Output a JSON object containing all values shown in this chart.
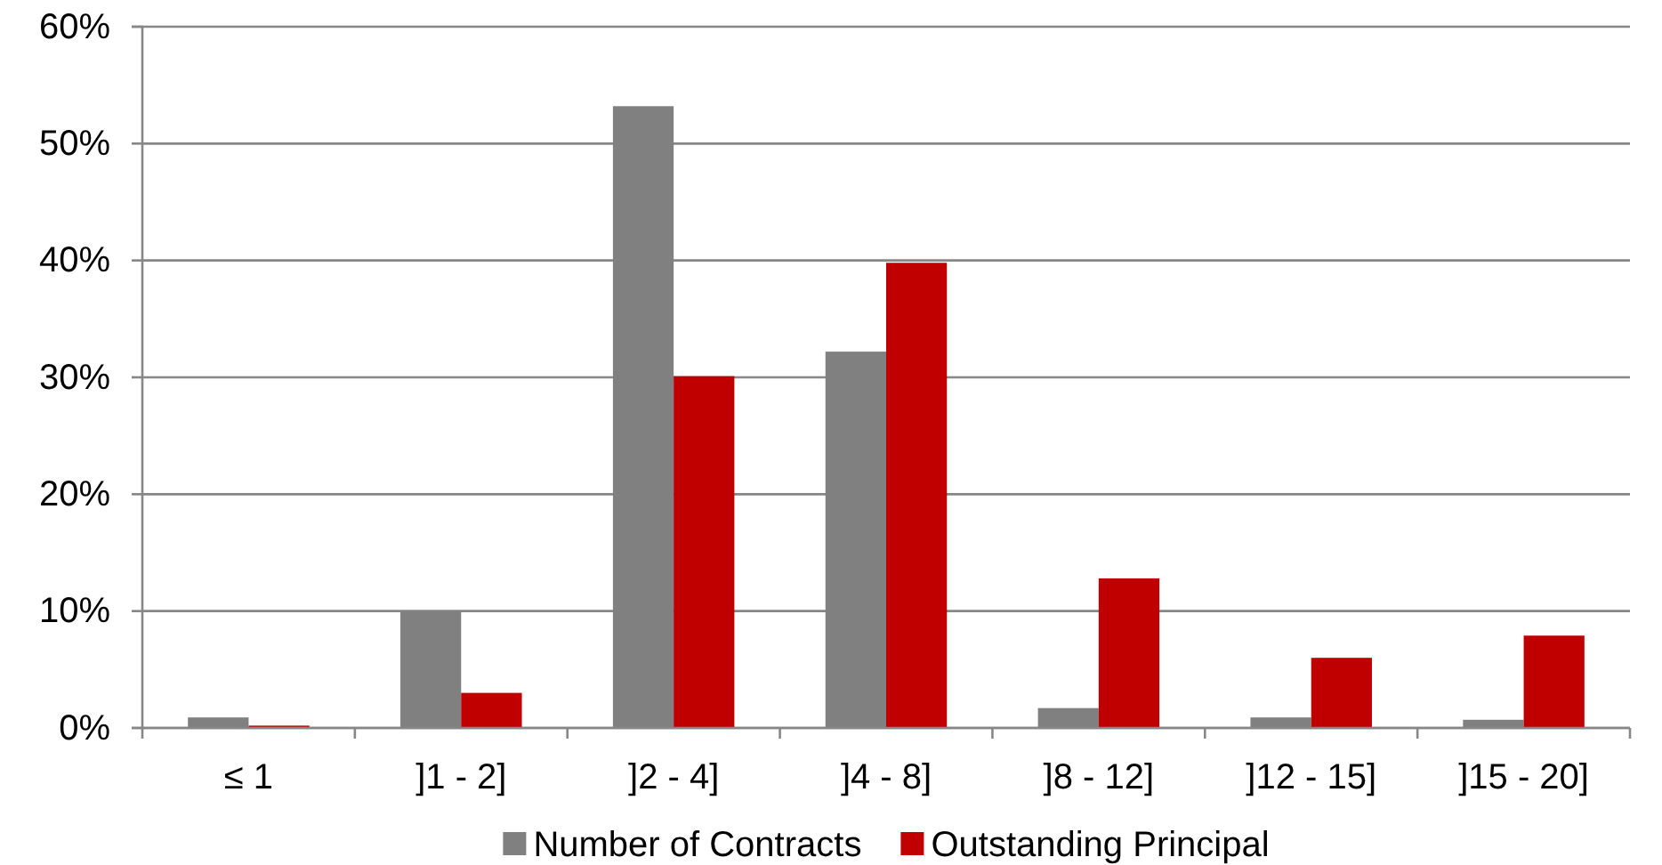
{
  "chart_data": {
    "type": "bar",
    "categories": [
      "≤ 1",
      "]1 - 2]",
      "]2 - 4]",
      "]4 - 8]",
      "]8 - 12]",
      "]12 - 15]",
      "]15 - 20]"
    ],
    "series": [
      {
        "name": "Number of Contracts",
        "color": "#808080",
        "values": [
          0.9,
          10.0,
          53.2,
          32.2,
          1.7,
          0.9,
          0.7
        ]
      },
      {
        "name": "Outstanding Principal",
        "color": "#c00000",
        "values": [
          0.2,
          3.0,
          30.1,
          39.8,
          12.8,
          6.0,
          7.9
        ]
      }
    ],
    "ylim": [
      0,
      60
    ],
    "yticks": [
      {
        "value": 0,
        "label": "0%"
      },
      {
        "value": 10,
        "label": "10%"
      },
      {
        "value": 20,
        "label": "20%"
      },
      {
        "value": 30,
        "label": "30%"
      },
      {
        "value": 40,
        "label": "40%"
      },
      {
        "value": 50,
        "label": "50%"
      },
      {
        "value": 60,
        "label": "60%"
      }
    ],
    "grid": "y",
    "legend": "bottom"
  }
}
